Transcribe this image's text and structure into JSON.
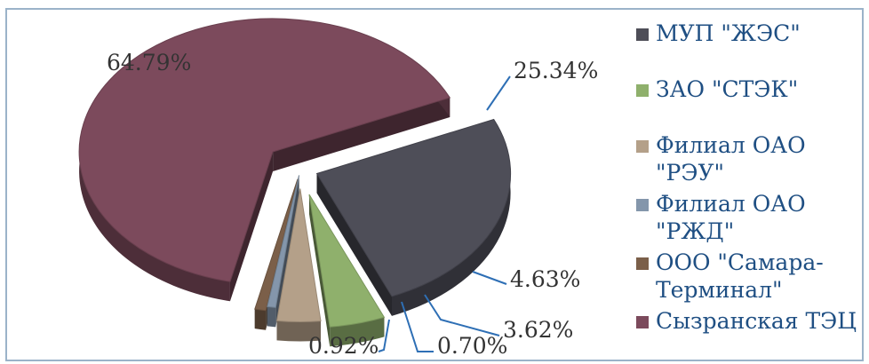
{
  "chart_data": {
    "type": "pie",
    "title": "",
    "labels": [
      "МУП \"ЖЭС\"",
      "ЗАО \"СТЭК\"",
      "Филиал ОАО \"РЭУ\"",
      "Филиал ОАО \"РЖД\"",
      "ООО \"Самара-Терминал\"",
      "Сызранская ТЭЦ"
    ],
    "values": [
      25.34,
      4.63,
      3.62,
      0.7,
      0.92,
      64.79
    ],
    "data_labels": [
      "25.34%",
      "4.63%",
      "3.62%",
      "0.70%",
      "0.92%",
      "64.79%"
    ],
    "colors": [
      "#4e4e58",
      "#8fb06c",
      "#b4a089",
      "#8496ab",
      "#7b5f49",
      "#7c4a5c"
    ],
    "exploded": true,
    "three_d": true,
    "legend_position": "right"
  },
  "legend": {
    "items": [
      {
        "lines": [
          "МУП \"ЖЭС\""
        ],
        "color": "#4e4e58"
      },
      {
        "lines": [
          "ЗАО \"СТЭК\""
        ],
        "color": "#8fb06c"
      },
      {
        "lines": [
          "Филиал ОАО",
          "\"РЭУ\""
        ],
        "color": "#b4a089"
      },
      {
        "lines": [
          "Филиал ОАО",
          "\"РЖД\""
        ],
        "color": "#8496ab"
      },
      {
        "lines": [
          "ООО \"Самара-",
          "Терминал\""
        ],
        "color": "#7b5f49"
      },
      {
        "lines": [
          "Сызранская ТЭЦ"
        ],
        "color": "#7c4a5c"
      }
    ]
  }
}
